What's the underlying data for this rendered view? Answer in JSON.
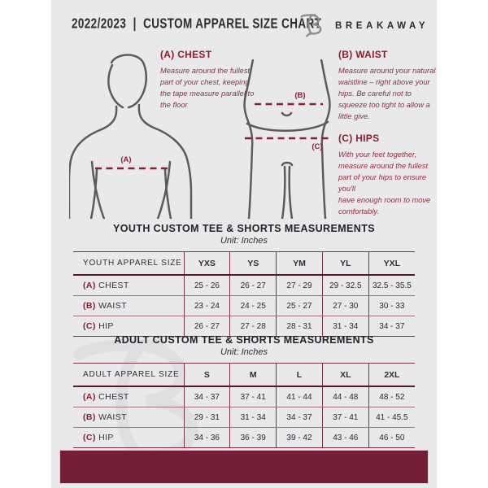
{
  "header": {
    "season": "2022/2023",
    "separator": "|",
    "title": "CUSTOM APPAREL SIZE CHART",
    "brand": "BREAKAWAY",
    "logo_icon": "breakaway-b-monogram"
  },
  "guide": {
    "chest": {
      "heading": "(A) CHEST",
      "body": "Measure around the fullest part of your chest, keeping the tape measure parallel to the floor",
      "marker": "(A)"
    },
    "waist": {
      "heading": "(B) WAIST",
      "body": "Measure around your natural waistline – right above your hips. Be careful not to squeeze too tight to allow a little give.",
      "marker": "(B)"
    },
    "hips": {
      "heading": "(C) HIPS",
      "body": "With your feet together, measure around the fullest part of your hips to ensure you'll\nhave enough room to move comfortably.",
      "marker": "(C)"
    }
  },
  "tables": [
    {
      "title": "YOUTH CUSTOM TEE & SHORTS MEASUREMENTS",
      "unit": "Unit: Inches",
      "size_label": "YOUTH APPAREL SIZE",
      "columns": [
        "YXS",
        "YS",
        "YM",
        "YL",
        "YXL"
      ],
      "rows": [
        {
          "prefix": "(A)",
          "label": "CHEST",
          "values": [
            "25 - 26",
            "26 - 27",
            "27 - 29",
            "29 - 32.5",
            "32.5 - 35.5"
          ]
        },
        {
          "prefix": "(B)",
          "label": "WAIST",
          "values": [
            "23 - 24",
            "24 - 25",
            "25 - 27",
            "27 - 30",
            "30 - 33"
          ]
        },
        {
          "prefix": "(C)",
          "label": "HIP",
          "values": [
            "26 - 27",
            "27 - 28",
            "28 - 31",
            "31 - 34",
            "34 - 37"
          ]
        }
      ]
    },
    {
      "title": "ADULT CUSTOM TEE & SHORTS MEASUREMENTS",
      "unit": "Unit: Inches",
      "size_label": "ADULT APPAREL SIZE",
      "columns": [
        "S",
        "M",
        "L",
        "XL",
        "2XL"
      ],
      "rows": [
        {
          "prefix": "(A)",
          "label": "CHEST",
          "values": [
            "34 - 37",
            "37 - 41",
            "41 - 44",
            "44 - 48",
            "48 - 52"
          ]
        },
        {
          "prefix": "(B)",
          "label": "WAIST",
          "values": [
            "29 - 31",
            "31 - 34",
            "34 - 37",
            "37 - 41",
            "41 - 45.5"
          ]
        },
        {
          "prefix": "(C)",
          "label": "HIP",
          "values": [
            "34 - 36",
            "36 - 39",
            "39 - 42",
            "43 - 46",
            "46 - 50"
          ]
        }
      ]
    }
  ],
  "colors": {
    "page_bg": "#E9E9EB",
    "maroon": "#731D36",
    "maroon_heading": "#8C1D2D",
    "dashed_line": "#8C1D30",
    "table_border": "#7D3048",
    "figure_stroke": "#5B5B5E",
    "text_dark": "#2B2B2E",
    "watermark": "#DFDFE2"
  }
}
